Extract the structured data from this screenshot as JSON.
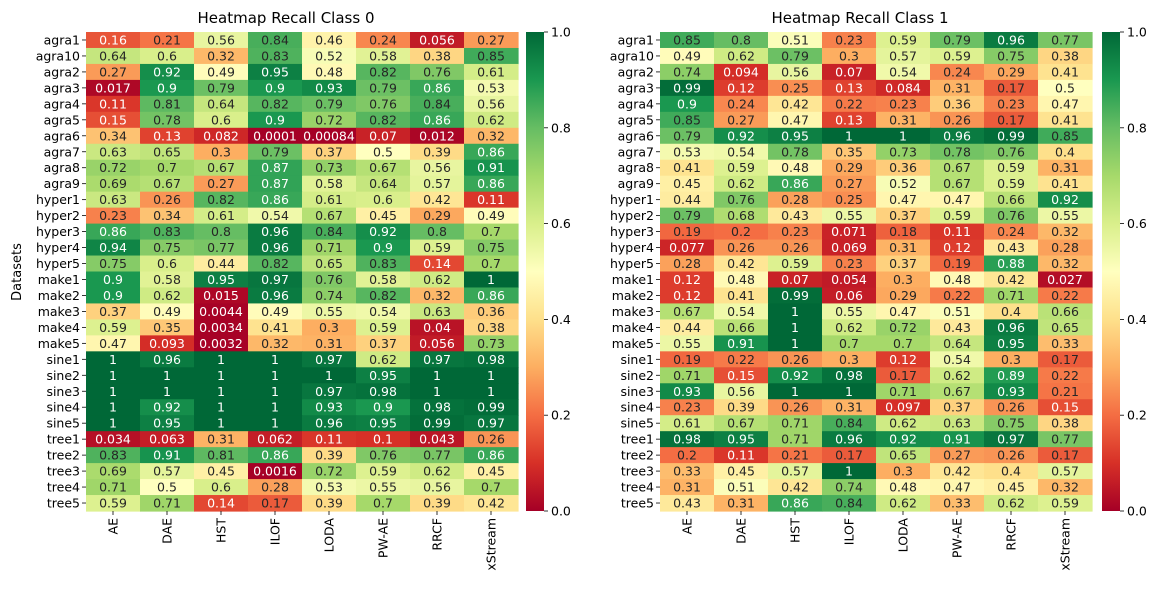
{
  "chart_data": [
    {
      "type": "heatmap",
      "title": "Heatmap Recall Class 0",
      "ylabel": "Datasets",
      "xlabel": "",
      "colormap": "RdYlGn",
      "vmin": 0,
      "vmax": 1,
      "colorbar_ticks": [
        "0.0",
        "0.2",
        "0.4",
        "0.6",
        "0.8",
        "1.0"
      ],
      "x_categories": [
        "AE",
        "DAE",
        "HST",
        "ILOF",
        "LODA",
        "PW-AE",
        "RRCF",
        "xStream"
      ],
      "y_categories": [
        "agra1",
        "agra10",
        "agra2",
        "agra3",
        "agra4",
        "agra5",
        "agra6",
        "agra7",
        "agra8",
        "agra9",
        "hyper1",
        "hyper2",
        "hyper3",
        "hyper4",
        "hyper5",
        "make1",
        "make2",
        "make3",
        "make4",
        "make5",
        "sine1",
        "sine2",
        "sine3",
        "sine4",
        "sine5",
        "tree1",
        "tree2",
        "tree3",
        "tree4",
        "tree5"
      ],
      "labels": [
        [
          "0.16",
          "0.21",
          "0.56",
          "0.84",
          "0.46",
          "0.24",
          "0.056",
          "0.27"
        ],
        [
          "0.64",
          "0.6",
          "0.32",
          "0.83",
          "0.52",
          "0.58",
          "0.38",
          "0.85"
        ],
        [
          "0.27",
          "0.92",
          "0.49",
          "0.95",
          "0.48",
          "0.82",
          "0.76",
          "0.61"
        ],
        [
          "0.017",
          "0.9",
          "0.79",
          "0.9",
          "0.93",
          "0.79",
          "0.86",
          "0.53"
        ],
        [
          "0.11",
          "0.81",
          "0.64",
          "0.82",
          "0.79",
          "0.76",
          "0.84",
          "0.56"
        ],
        [
          "0.15",
          "0.78",
          "0.6",
          "0.9",
          "0.72",
          "0.82",
          "0.86",
          "0.62"
        ],
        [
          "0.34",
          "0.13",
          "0.082",
          "0.0001",
          "0.00084",
          "0.07",
          "0.012",
          "0.32"
        ],
        [
          "0.63",
          "0.65",
          "0.3",
          "0.79",
          "0.37",
          "0.5",
          "0.39",
          "0.86"
        ],
        [
          "0.72",
          "0.7",
          "0.67",
          "0.87",
          "0.73",
          "0.67",
          "0.56",
          "0.91"
        ],
        [
          "0.69",
          "0.67",
          "0.27",
          "0.87",
          "0.58",
          "0.64",
          "0.57",
          "0.86"
        ],
        [
          "0.63",
          "0.26",
          "0.82",
          "0.86",
          "0.61",
          "0.6",
          "0.42",
          "0.11"
        ],
        [
          "0.23",
          "0.34",
          "0.61",
          "0.54",
          "0.67",
          "0.45",
          "0.29",
          "0.49"
        ],
        [
          "0.86",
          "0.83",
          "0.8",
          "0.96",
          "0.84",
          "0.92",
          "0.8",
          "0.7"
        ],
        [
          "0.94",
          "0.75",
          "0.77",
          "0.96",
          "0.71",
          "0.9",
          "0.59",
          "0.75"
        ],
        [
          "0.75",
          "0.6",
          "0.44",
          "0.82",
          "0.65",
          "0.83",
          "0.14",
          "0.7"
        ],
        [
          "0.9",
          "0.58",
          "0.95",
          "0.97",
          "0.76",
          "0.58",
          "0.62",
          "1"
        ],
        [
          "0.9",
          "0.62",
          "0.015",
          "0.96",
          "0.74",
          "0.82",
          "0.32",
          "0.86"
        ],
        [
          "0.37",
          "0.49",
          "0.0044",
          "0.49",
          "0.55",
          "0.54",
          "0.63",
          "0.36"
        ],
        [
          "0.59",
          "0.35",
          "0.0034",
          "0.41",
          "0.3",
          "0.59",
          "0.04",
          "0.38"
        ],
        [
          "0.47",
          "0.093",
          "0.0032",
          "0.32",
          "0.31",
          "0.37",
          "0.056",
          "0.73"
        ],
        [
          "1",
          "0.96",
          "1",
          "1",
          "0.97",
          "0.62",
          "0.97",
          "0.98"
        ],
        [
          "1",
          "1",
          "1",
          "1",
          "1",
          "0.95",
          "1",
          "1"
        ],
        [
          "1",
          "1",
          "1",
          "1",
          "0.97",
          "0.98",
          "1",
          "1"
        ],
        [
          "1",
          "0.92",
          "1",
          "1",
          "0.93",
          "0.9",
          "0.98",
          "0.99"
        ],
        [
          "1",
          "0.95",
          "1",
          "1",
          "0.96",
          "0.95",
          "0.99",
          "0.97"
        ],
        [
          "0.034",
          "0.063",
          "0.31",
          "0.062",
          "0.11",
          "0.1",
          "0.043",
          "0.26"
        ],
        [
          "0.83",
          "0.91",
          "0.81",
          "0.86",
          "0.39",
          "0.76",
          "0.77",
          "0.86"
        ],
        [
          "0.69",
          "0.57",
          "0.45",
          "0.0016",
          "0.72",
          "0.59",
          "0.62",
          "0.45"
        ],
        [
          "0.71",
          "0.5",
          "0.6",
          "0.28",
          "0.53",
          "0.55",
          "0.56",
          "0.7"
        ],
        [
          "0.59",
          "0.71",
          "0.14",
          "0.17",
          "0.39",
          "0.7",
          "0.39",
          "0.42"
        ]
      ]
    },
    {
      "type": "heatmap",
      "title": "Heatmap Recall Class 1",
      "ylabel": "",
      "xlabel": "",
      "colormap": "RdYlGn",
      "vmin": 0,
      "vmax": 1,
      "colorbar_ticks": [
        "0.0",
        "0.2",
        "0.4",
        "0.6",
        "0.8",
        "1.0"
      ],
      "x_categories": [
        "AE",
        "DAE",
        "HST",
        "ILOF",
        "LODA",
        "PW-AE",
        "RRCF",
        "xStream"
      ],
      "y_categories": [
        "agra1",
        "agra10",
        "agra2",
        "agra3",
        "agra4",
        "agra5",
        "agra6",
        "agra7",
        "agra8",
        "agra9",
        "hyper1",
        "hyper2",
        "hyper3",
        "hyper4",
        "hyper5",
        "make1",
        "make2",
        "make3",
        "make4",
        "make5",
        "sine1",
        "sine2",
        "sine3",
        "sine4",
        "sine5",
        "tree1",
        "tree2",
        "tree3",
        "tree4",
        "tree5"
      ],
      "labels": [
        [
          "0.85",
          "0.8",
          "0.51",
          "0.23",
          "0.59",
          "0.79",
          "0.96",
          "0.77"
        ],
        [
          "0.49",
          "0.62",
          "0.79",
          "0.3",
          "0.57",
          "0.59",
          "0.75",
          "0.38"
        ],
        [
          "0.74",
          "0.094",
          "0.56",
          "0.07",
          "0.54",
          "0.24",
          "0.29",
          "0.41"
        ],
        [
          "0.99",
          "0.12",
          "0.25",
          "0.13",
          "0.084",
          "0.31",
          "0.17",
          "0.5"
        ],
        [
          "0.9",
          "0.24",
          "0.42",
          "0.22",
          "0.23",
          "0.36",
          "0.23",
          "0.47"
        ],
        [
          "0.85",
          "0.27",
          "0.47",
          "0.13",
          "0.31",
          "0.26",
          "0.17",
          "0.41"
        ],
        [
          "0.79",
          "0.92",
          "0.95",
          "1",
          "1",
          "0.96",
          "0.99",
          "0.85"
        ],
        [
          "0.53",
          "0.54",
          "0.78",
          "0.35",
          "0.73",
          "0.78",
          "0.76",
          "0.4"
        ],
        [
          "0.41",
          "0.59",
          "0.48",
          "0.29",
          "0.36",
          "0.67",
          "0.59",
          "0.31"
        ],
        [
          "0.45",
          "0.62",
          "0.86",
          "0.27",
          "0.52",
          "0.67",
          "0.59",
          "0.41"
        ],
        [
          "0.44",
          "0.76",
          "0.28",
          "0.25",
          "0.47",
          "0.47",
          "0.66",
          "0.92"
        ],
        [
          "0.79",
          "0.68",
          "0.43",
          "0.55",
          "0.37",
          "0.59",
          "0.76",
          "0.55"
        ],
        [
          "0.19",
          "0.2",
          "0.23",
          "0.071",
          "0.18",
          "0.11",
          "0.24",
          "0.32"
        ],
        [
          "0.077",
          "0.26",
          "0.26",
          "0.069",
          "0.31",
          "0.12",
          "0.43",
          "0.28"
        ],
        [
          "0.28",
          "0.42",
          "0.59",
          "0.23",
          "0.37",
          "0.19",
          "0.88",
          "0.32"
        ],
        [
          "0.12",
          "0.48",
          "0.07",
          "0.054",
          "0.3",
          "0.48",
          "0.42",
          "0.027"
        ],
        [
          "0.12",
          "0.41",
          "0.99",
          "0.06",
          "0.29",
          "0.22",
          "0.71",
          "0.22"
        ],
        [
          "0.67",
          "0.54",
          "1",
          "0.55",
          "0.47",
          "0.51",
          "0.4",
          "0.66"
        ],
        [
          "0.44",
          "0.66",
          "1",
          "0.62",
          "0.72",
          "0.43",
          "0.96",
          "0.65"
        ],
        [
          "0.55",
          "0.91",
          "1",
          "0.7",
          "0.7",
          "0.64",
          "0.95",
          "0.33"
        ],
        [
          "0.19",
          "0.22",
          "0.26",
          "0.3",
          "0.12",
          "0.54",
          "0.3",
          "0.17"
        ],
        [
          "0.71",
          "0.15",
          "0.92",
          "0.98",
          "0.17",
          "0.62",
          "0.89",
          "0.22"
        ],
        [
          "0.93",
          "0.56",
          "1",
          "1",
          "0.71",
          "0.67",
          "0.93",
          "0.21"
        ],
        [
          "0.23",
          "0.39",
          "0.26",
          "0.31",
          "0.097",
          "0.37",
          "0.26",
          "0.15"
        ],
        [
          "0.61",
          "0.67",
          "0.71",
          "0.84",
          "0.62",
          "0.63",
          "0.75",
          "0.38"
        ],
        [
          "0.98",
          "0.95",
          "0.71",
          "0.96",
          "0.92",
          "0.91",
          "0.97",
          "0.77"
        ],
        [
          "0.2",
          "0.11",
          "0.21",
          "0.17",
          "0.65",
          "0.27",
          "0.26",
          "0.17"
        ],
        [
          "0.33",
          "0.45",
          "0.57",
          "1",
          "0.3",
          "0.42",
          "0.4",
          "0.57"
        ],
        [
          "0.31",
          "0.51",
          "0.42",
          "0.74",
          "0.48",
          "0.47",
          "0.45",
          "0.32"
        ],
        [
          "0.43",
          "0.31",
          "0.86",
          "0.84",
          "0.62",
          "0.33",
          "0.62",
          "0.59"
        ]
      ]
    }
  ]
}
